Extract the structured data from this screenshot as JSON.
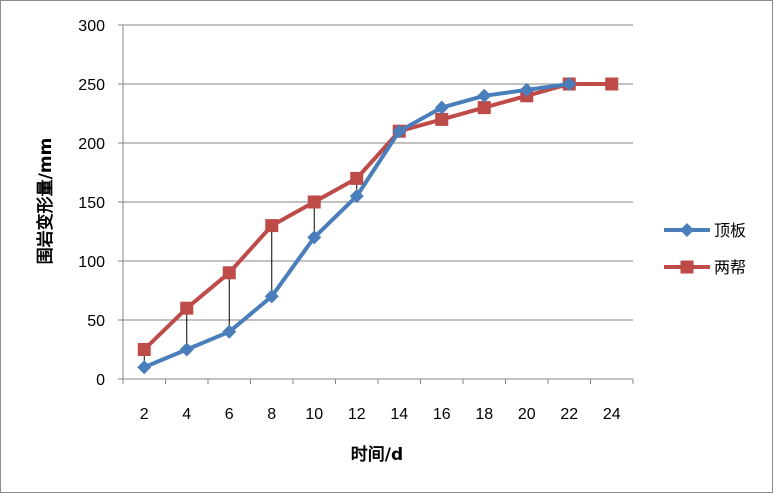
{
  "chart_data": {
    "type": "line",
    "xlabel": "时间/d",
    "ylabel": "围岩变形量/mm",
    "categories": [
      "2",
      "4",
      "6",
      "8",
      "10",
      "12",
      "14",
      "16",
      "18",
      "20",
      "22",
      "24"
    ],
    "ylim": [
      0,
      300
    ],
    "yticks": [
      "0",
      "50",
      "100",
      "150",
      "200",
      "250",
      "300"
    ],
    "grid": true,
    "legend_position": "right",
    "series": [
      {
        "name": "顶板",
        "color": "#4a7ebb",
        "marker": "diamond",
        "values": [
          10,
          25,
          40,
          70,
          120,
          155,
          210,
          230,
          240,
          245,
          250,
          null
        ]
      },
      {
        "name": "两帮",
        "color": "#be4b48",
        "marker": "square",
        "values": [
          25,
          60,
          90,
          130,
          150,
          170,
          210,
          220,
          230,
          240,
          250,
          250
        ]
      }
    ],
    "drop_lines": true
  }
}
